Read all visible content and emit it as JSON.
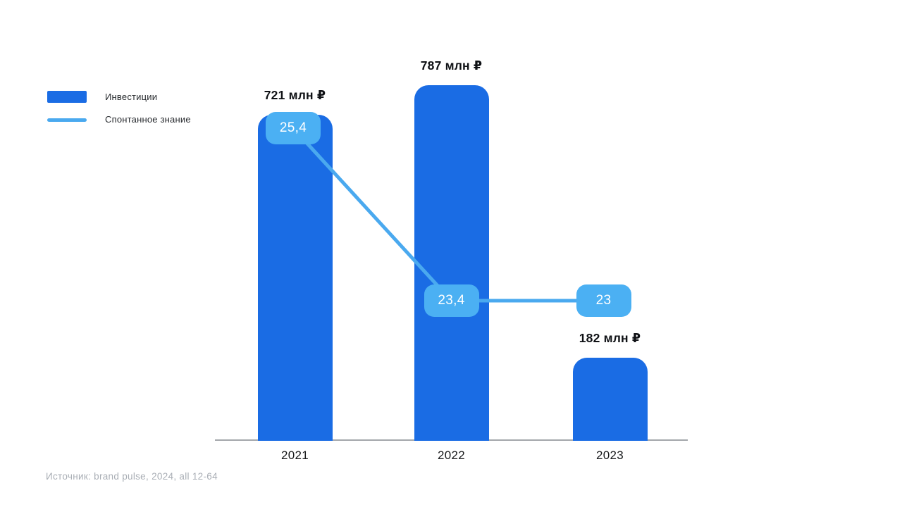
{
  "legend": {
    "position": "top-left",
    "items": [
      {
        "label": "Инвестиции",
        "marker": "bar-swatch",
        "color": "#1a6ce4"
      },
      {
        "label": "Спонтанное знание",
        "marker": "line-swatch",
        "color": "#4aa9ef"
      }
    ]
  },
  "source": {
    "text": "Источник: brand pulse, 2024, all 12-64"
  },
  "colors": {
    "bar": "#1a6ce4",
    "line": "#4aa9ef",
    "badge": "#4bb0f3",
    "axis": "#a3a7ab",
    "label_text": "#0f1115",
    "muted_text": "#a9aeb5",
    "badge_text": "#ffffff"
  },
  "chart_data": {
    "type": "bar",
    "categories": [
      "2021",
      "2022",
      "2023"
    ],
    "series": [
      {
        "name": "Инвестиции",
        "type": "bar",
        "unit": "млн ₽",
        "values": [
          721,
          787,
          182
        ],
        "data_labels": [
          "721 млн ₽",
          "787 млн ₽",
          "182 млн ₽"
        ],
        "color": "#1a6ce4"
      },
      {
        "name": "Спонтанное знание",
        "type": "line",
        "values": [
          25.4,
          23.4,
          23
        ],
        "data_labels": [
          "25,4",
          "23,4",
          "23"
        ],
        "color": "#4aa9ef",
        "badge_color": "#4bb0f3"
      }
    ],
    "xlabel": "",
    "ylabel": "",
    "ylim": [
      0,
      787
    ],
    "grid": false,
    "legend_position": "top-left"
  }
}
